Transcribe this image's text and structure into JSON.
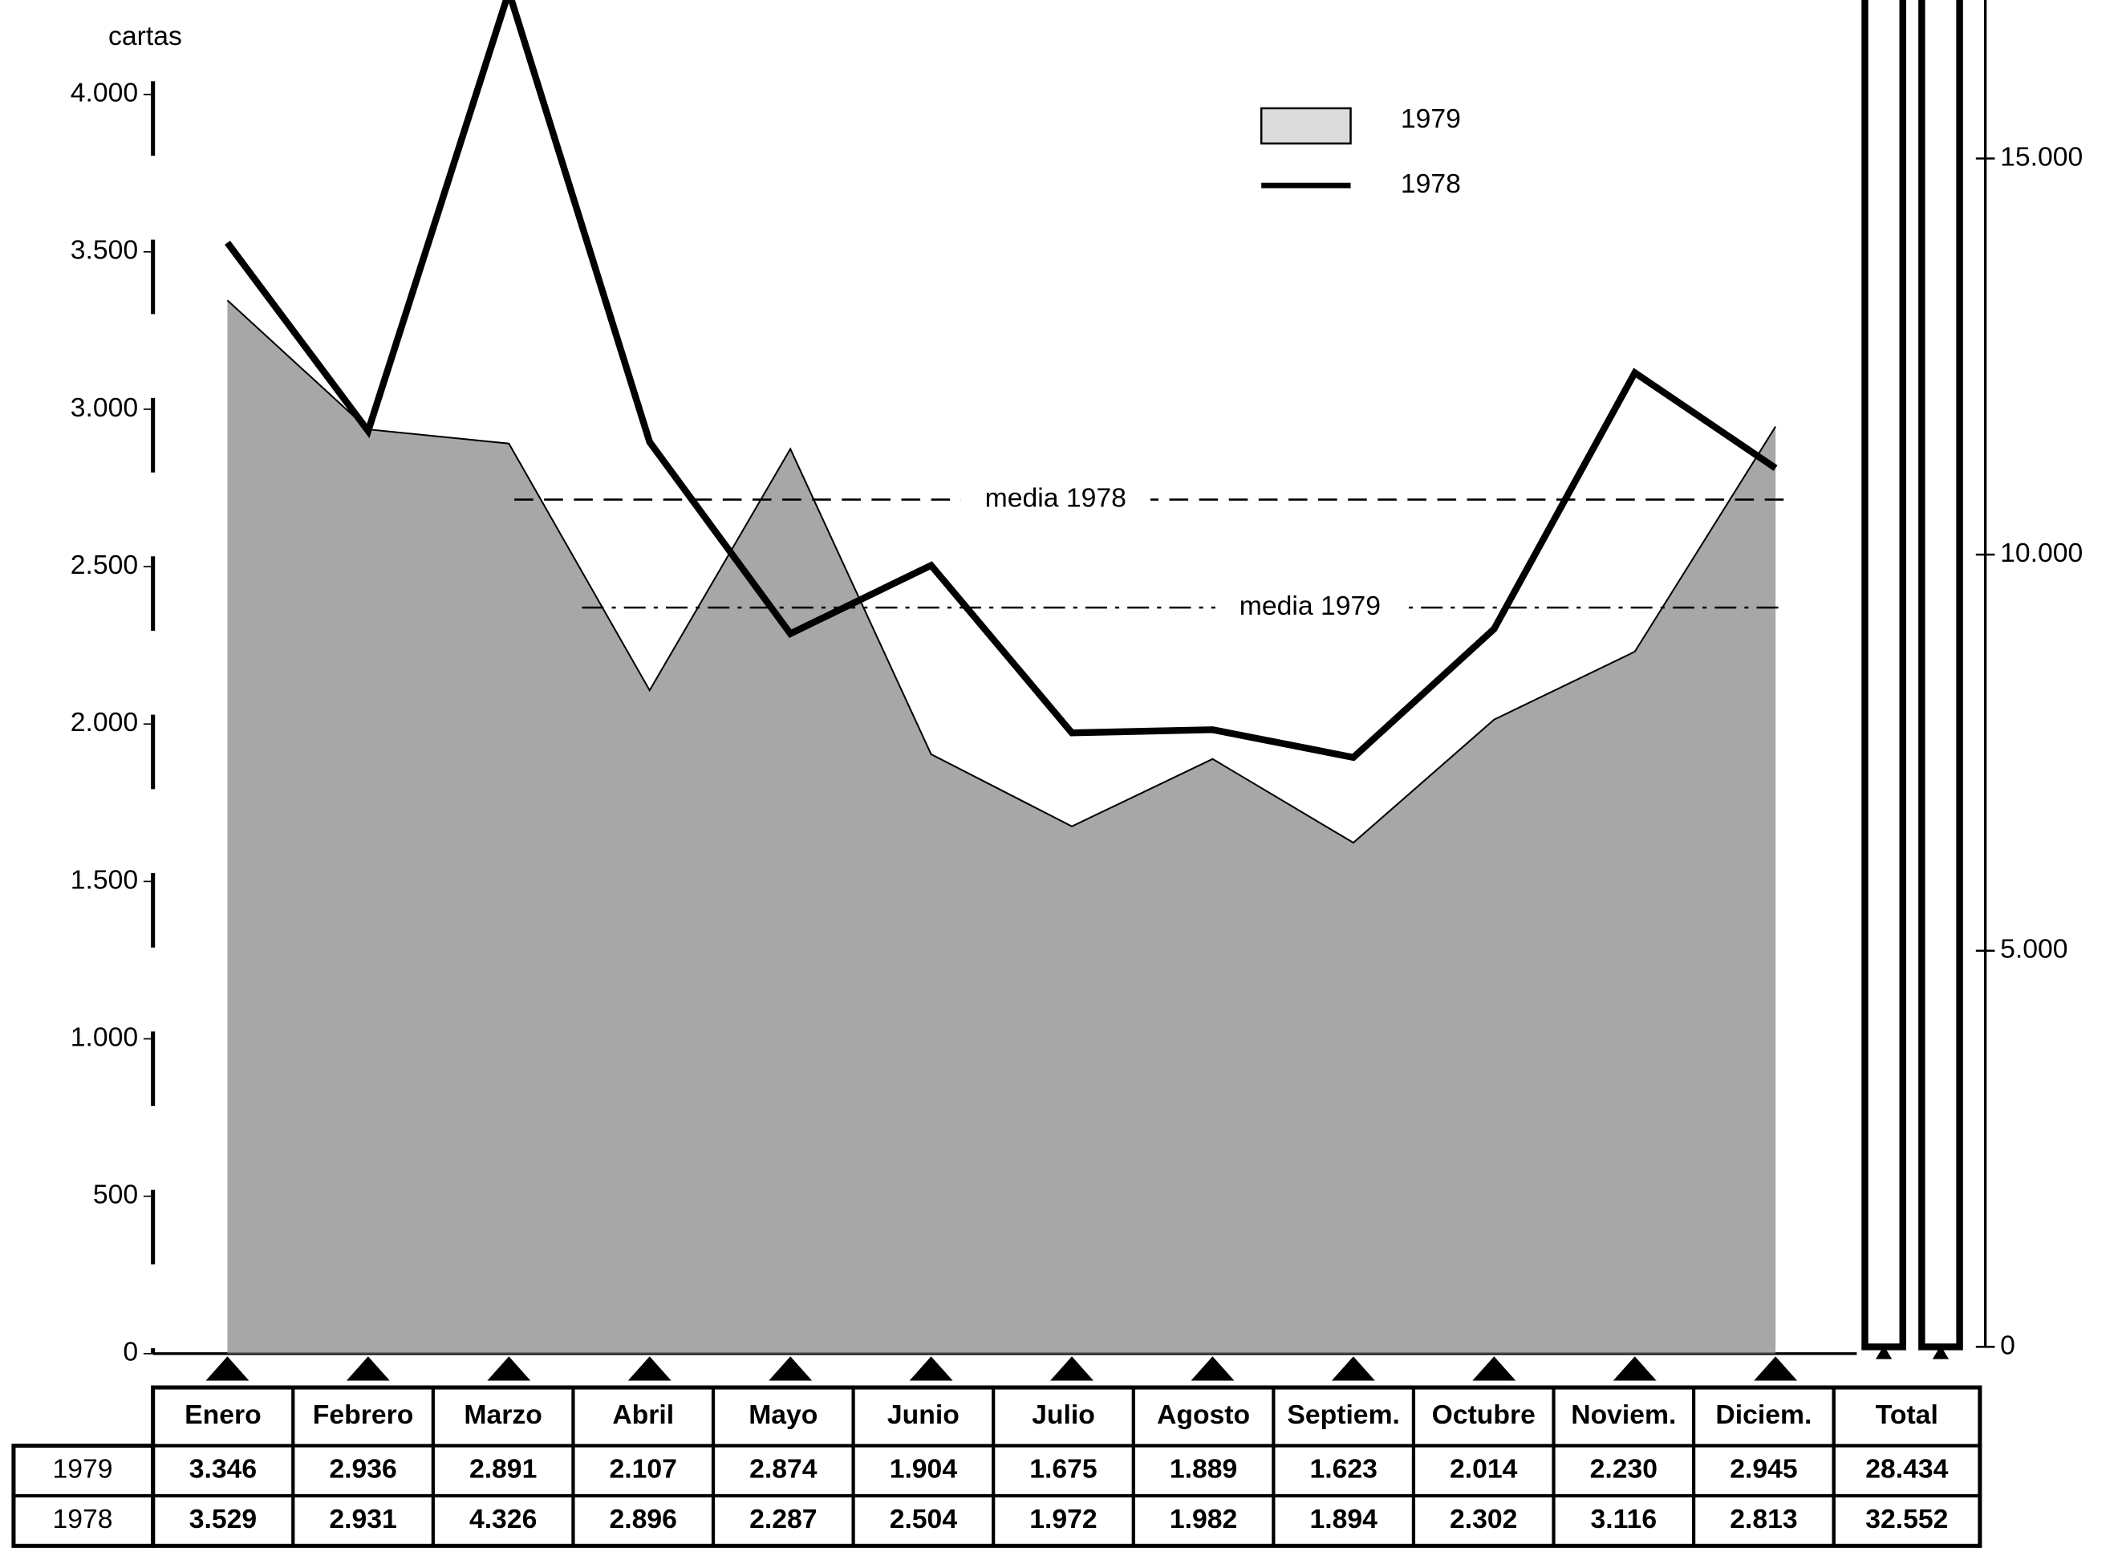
{
  "chart_data": {
    "type": "line",
    "y_label": "cartas",
    "categories": [
      "Enero",
      "Febrero",
      "Marzo",
      "Abril",
      "Mayo",
      "Junio",
      "Julio",
      "Agosto",
      "Septiem.",
      "Octubre",
      "Noviem.",
      "Diciem."
    ],
    "total_header": "Total",
    "series": [
      {
        "name": "1979",
        "style": "area",
        "color": "#8a8a8a",
        "values": [
          3346,
          2936,
          2891,
          2107,
          2874,
          1904,
          1675,
          1889,
          1623,
          2014,
          2230,
          2945
        ],
        "value_labels": [
          "3.346",
          "2.936",
          "2.891",
          "2.107",
          "2.874",
          "1.904",
          "1.675",
          "1.889",
          "1.623",
          "2.014",
          "2.230",
          "2.945"
        ],
        "total": 28434,
        "total_label": "28.434"
      },
      {
        "name": "1978",
        "style": "line",
        "color": "#000000",
        "values": [
          3529,
          2931,
          4326,
          2896,
          2287,
          2504,
          1972,
          1982,
          1894,
          2302,
          3116,
          2813
        ],
        "value_labels": [
          "3.529",
          "2.931",
          "4.326",
          "2.896",
          "2.287",
          "2.504",
          "1.972",
          "1.982",
          "1.894",
          "2.302",
          "3.116",
          "2.813"
        ],
        "total": 32552,
        "total_label": "32.552"
      }
    ],
    "annotations": [
      {
        "label": "media 1978",
        "value": 2713
      },
      {
        "label": "media 1979",
        "value": 2370
      }
    ],
    "ylim": [
      0,
      4300
    ],
    "yticks": [
      0,
      500,
      {
        "value": 1000,
        "label": "1.000"
      },
      {
        "value": 1500,
        "label": "1.500"
      },
      {
        "value": 2000,
        "label": "2.000"
      },
      {
        "value": 2500,
        "label": "2.500"
      },
      {
        "value": 3000,
        "label": "3.000"
      },
      {
        "value": 3500,
        "label": "3.500"
      },
      {
        "value": 4000,
        "label": "4.000"
      }
    ],
    "y2lim": [
      0,
      17000
    ],
    "y2ticks": [
      0,
      {
        "value": 5000,
        "label": "5.000"
      },
      {
        "value": 10000,
        "label": "10.000"
      },
      {
        "value": 15000,
        "label": "15.000"
      }
    ],
    "legend": "top-right"
  }
}
